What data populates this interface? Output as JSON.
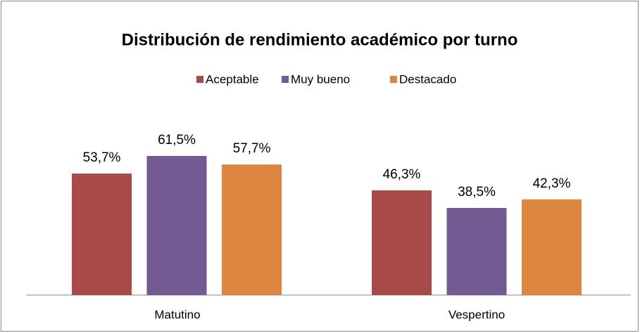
{
  "chart_data": {
    "type": "bar",
    "title": "Distribución de rendimiento académico por turno",
    "categories": [
      "Matutino",
      "Vespertino"
    ],
    "series": [
      {
        "name": "Aceptable",
        "color": "#a84a48",
        "values": [
          53.7,
          46.3
        ],
        "value_labels": [
          "53,7%",
          "46,3%"
        ]
      },
      {
        "name": "Muy bueno",
        "color": "#735a93",
        "values": [
          61.5,
          38.5
        ],
        "value_labels": [
          "61,5%",
          "38,5%"
        ]
      },
      {
        "name": "Destacado",
        "color": "#dc8642",
        "values": [
          57.7,
          42.3
        ],
        "value_labels": [
          "57,7%",
          "42,3%"
        ]
      }
    ],
    "legend": "top"
  }
}
